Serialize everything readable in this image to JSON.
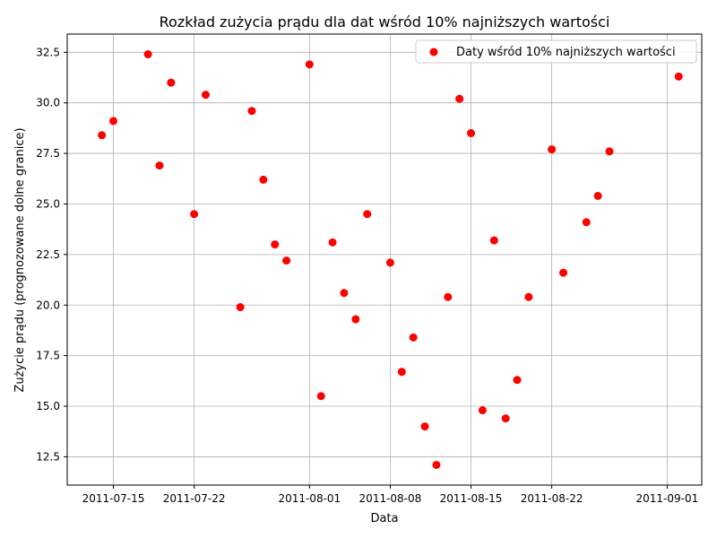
{
  "chart_data": {
    "type": "scatter",
    "title": "Rozkład zużycia prądu dla dat wśród 10% najniższych wartości",
    "xlabel": "Data",
    "ylabel": "Zużycie prądu (prognozowane dolne granice)",
    "grid": true,
    "legend_position": "top-right",
    "xlim": [
      "2011-07-11",
      "2011-09-04"
    ],
    "ylim": [
      11.1,
      33.4
    ],
    "x_ticks": [
      "2011-07-15",
      "2011-07-22",
      "2011-08-01",
      "2011-08-08",
      "2011-08-15",
      "2011-08-22",
      "2011-09-01"
    ],
    "y_ticks": [
      12.5,
      15.0,
      17.5,
      20.0,
      22.5,
      25.0,
      27.5,
      30.0,
      32.5
    ],
    "y_tick_labels": [
      "12.5",
      "15.0",
      "17.5",
      "20.0",
      "22.5",
      "25.0",
      "27.5",
      "30.0",
      "32.5"
    ],
    "series": [
      {
        "name": "Daty wśród 10% najniższych wartości",
        "color": "#ff0000",
        "points": [
          {
            "x": "2011-07-14",
            "y": 28.4
          },
          {
            "x": "2011-07-15",
            "y": 29.1
          },
          {
            "x": "2011-07-18",
            "y": 32.4
          },
          {
            "x": "2011-07-19",
            "y": 26.9
          },
          {
            "x": "2011-07-20",
            "y": 31.0
          },
          {
            "x": "2011-07-22",
            "y": 24.5
          },
          {
            "x": "2011-07-23",
            "y": 30.4
          },
          {
            "x": "2011-07-26",
            "y": 19.9
          },
          {
            "x": "2011-07-27",
            "y": 29.6
          },
          {
            "x": "2011-07-28",
            "y": 26.2
          },
          {
            "x": "2011-07-29",
            "y": 23.0
          },
          {
            "x": "2011-07-30",
            "y": 22.2
          },
          {
            "x": "2011-08-01",
            "y": 31.9
          },
          {
            "x": "2011-08-02",
            "y": 15.5
          },
          {
            "x": "2011-08-03",
            "y": 23.1
          },
          {
            "x": "2011-08-04",
            "y": 20.6
          },
          {
            "x": "2011-08-05",
            "y": 19.3
          },
          {
            "x": "2011-08-06",
            "y": 24.5
          },
          {
            "x": "2011-08-08",
            "y": 22.1
          },
          {
            "x": "2011-08-09",
            "y": 16.7
          },
          {
            "x": "2011-08-10",
            "y": 18.4
          },
          {
            "x": "2011-08-11",
            "y": 14.0
          },
          {
            "x": "2011-08-12",
            "y": 12.1
          },
          {
            "x": "2011-08-13",
            "y": 20.4
          },
          {
            "x": "2011-08-14",
            "y": 30.2
          },
          {
            "x": "2011-08-15",
            "y": 28.5
          },
          {
            "x": "2011-08-16",
            "y": 14.8
          },
          {
            "x": "2011-08-17",
            "y": 23.2
          },
          {
            "x": "2011-08-18",
            "y": 14.4
          },
          {
            "x": "2011-08-19",
            "y": 16.3
          },
          {
            "x": "2011-08-20",
            "y": 20.4
          },
          {
            "x": "2011-08-22",
            "y": 27.7
          },
          {
            "x": "2011-08-23",
            "y": 21.6
          },
          {
            "x": "2011-08-25",
            "y": 24.1
          },
          {
            "x": "2011-08-26",
            "y": 25.4
          },
          {
            "x": "2011-08-27",
            "y": 27.6
          },
          {
            "x": "2011-09-02",
            "y": 31.3
          }
        ]
      }
    ]
  }
}
